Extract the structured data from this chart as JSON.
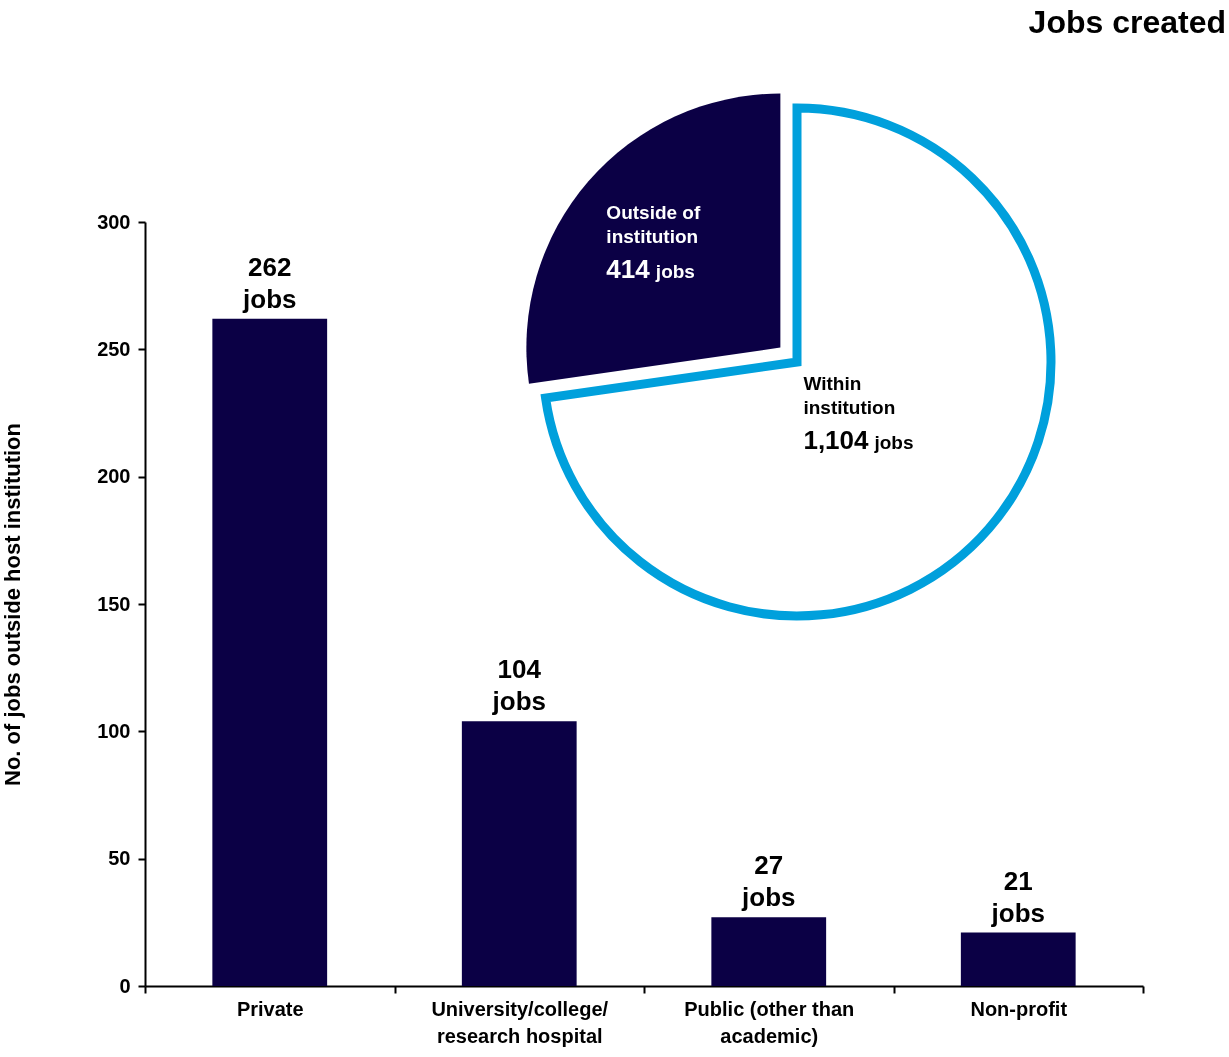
{
  "chart_data": [
    {
      "type": "bar",
      "title": "Jobs created",
      "ylabel": "No. of jobs outside host institution",
      "categories": [
        "Private",
        "University/college/research hospital",
        "Public (other than academic)",
        "Non-profit"
      ],
      "values": [
        262,
        104,
        27,
        21
      ],
      "value_labels": [
        "262 jobs",
        "104 jobs",
        "27 jobs",
        "21 jobs"
      ],
      "color": "#0b0045",
      "ylim": [
        0,
        300
      ],
      "yticks": [
        0,
        50,
        100,
        150,
        200,
        250,
        300
      ]
    },
    {
      "type": "pie",
      "categories": [
        "Outside of institution",
        "Within institution"
      ],
      "values": [
        414,
        1104
      ],
      "value_labels": [
        "414 jobs",
        "1,104 jobs"
      ],
      "colors": [
        "#0b0045",
        "#ffffff"
      ]
    }
  ]
}
